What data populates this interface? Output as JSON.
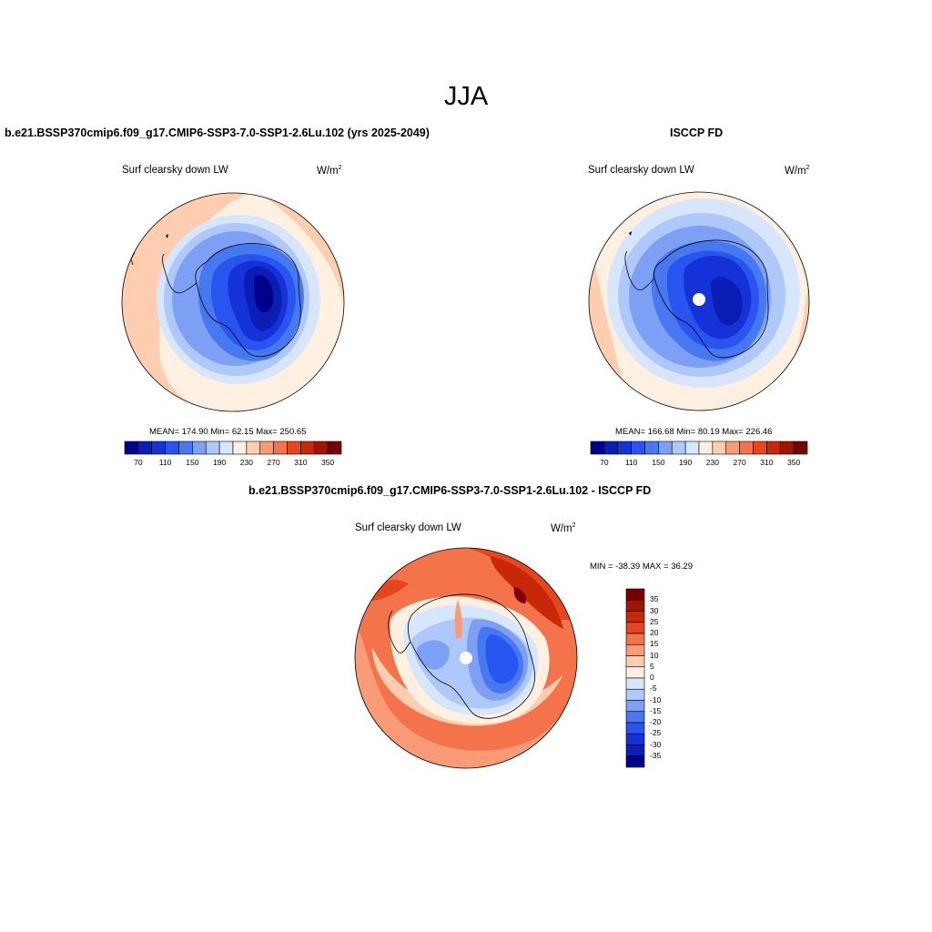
{
  "figure_title": "JJA",
  "panels": {
    "model": {
      "case": "b.e21.BSSP370cmip6.f09_g17.CMIP6-SSP3-7.0-SSP1-2.6Lu.102 (yrs 2025-2049)",
      "variable": "Surf clearsky down LW",
      "units": "W/m",
      "units_exp": "2",
      "stats": "MEAN= 174.90  Min=  62.15  Max= 250.65"
    },
    "obs": {
      "case": "ISCCP FD",
      "variable": "Surf clearsky down LW",
      "units": "W/m",
      "units_exp": "2",
      "stats": "MEAN= 166.68  Min=  80.19  Max= 226.46"
    },
    "diff": {
      "case": "b.e21.BSSP370cmip6.f09_g17.CMIP6-SSP3-7.0-SSP1-2.6Lu.102 - ISCCP FD",
      "variable": "Surf clearsky down LW",
      "units": "W/m",
      "units_exp": "2",
      "stats": "MIN = -38.39 MAX =  36.29"
    }
  },
  "colorbar_abs": {
    "colors": [
      "#00008b",
      "#0a1eb3",
      "#1432d7",
      "#2855f0",
      "#4678f0",
      "#7da0f5",
      "#afc8fa",
      "#d7e6fa",
      "#fff0e1",
      "#ffcdaf",
      "#fa9b78",
      "#f5734b",
      "#e6461e",
      "#c8280a",
      "#a01400",
      "#780000"
    ],
    "labels": [
      "70",
      "110",
      "150",
      "190",
      "230",
      "270",
      "310",
      "350"
    ]
  },
  "colorbar_diff": {
    "colors": [
      "#780000",
      "#a01400",
      "#c8280a",
      "#e6461e",
      "#f5734b",
      "#fa9b78",
      "#ffcdaf",
      "#fff0e1",
      "#d7e6fa",
      "#afc8fa",
      "#7da0f5",
      "#4678f0",
      "#2855f0",
      "#1432d7",
      "#0a1eb3",
      "#00008b"
    ],
    "labels": [
      "35",
      "30",
      "25",
      "20",
      "15",
      "10",
      "5",
      "0",
      "-5",
      "-10",
      "-15",
      "-20",
      "-25",
      "-30",
      "-35"
    ]
  }
}
